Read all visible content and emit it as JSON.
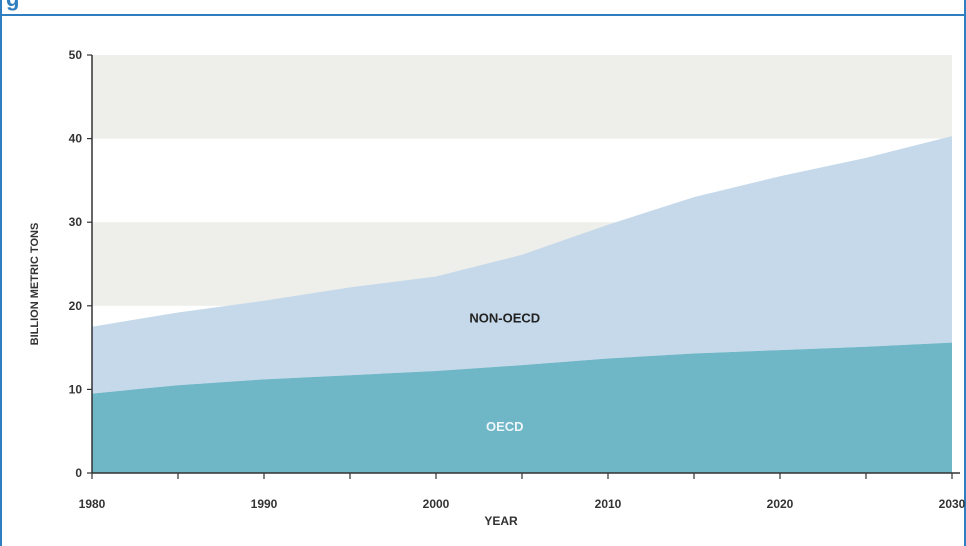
{
  "header": {
    "title_fragment": "g"
  },
  "chart_data": {
    "type": "area",
    "stacked": true,
    "title": "",
    "xlabel": "YEAR",
    "ylabel": "BILLION METRIC TONS",
    "xlim": [
      1980,
      2030
    ],
    "ylim": [
      0,
      50
    ],
    "x_ticks": [
      1980,
      1990,
      2000,
      2010,
      2020,
      2030
    ],
    "y_ticks": [
      0,
      10,
      20,
      30,
      40,
      50
    ],
    "x_tick_labels": [
      "1980",
      "1990",
      "2000",
      "2010",
      "2020",
      "2030"
    ],
    "y_tick_labels": [
      "0",
      "10",
      "20",
      "30",
      "40",
      "50"
    ],
    "band_stripes": [
      [
        20,
        30
      ],
      [
        40,
        50
      ]
    ],
    "x": [
      1980,
      1985,
      1990,
      1995,
      2000,
      2005,
      2010,
      2015,
      2020,
      2025,
      2030
    ],
    "series": [
      {
        "name": "OECD",
        "values": [
          9.5,
          10.5,
          11.2,
          11.7,
          12.2,
          12.9,
          13.7,
          14.3,
          14.7,
          15.1,
          15.6
        ],
        "color": "#6fb6c6"
      },
      {
        "name": "NON-OECD",
        "values": [
          8.0,
          8.7,
          9.4,
          10.5,
          11.3,
          13.2,
          16.0,
          18.7,
          20.8,
          22.6,
          24.7
        ],
        "color": "#c5d9ea"
      }
    ],
    "colors": {
      "band": "#eeeeea",
      "axis": "#333333",
      "oecd_label": "#eef6fa",
      "non_oecd_label": "#222222"
    }
  }
}
